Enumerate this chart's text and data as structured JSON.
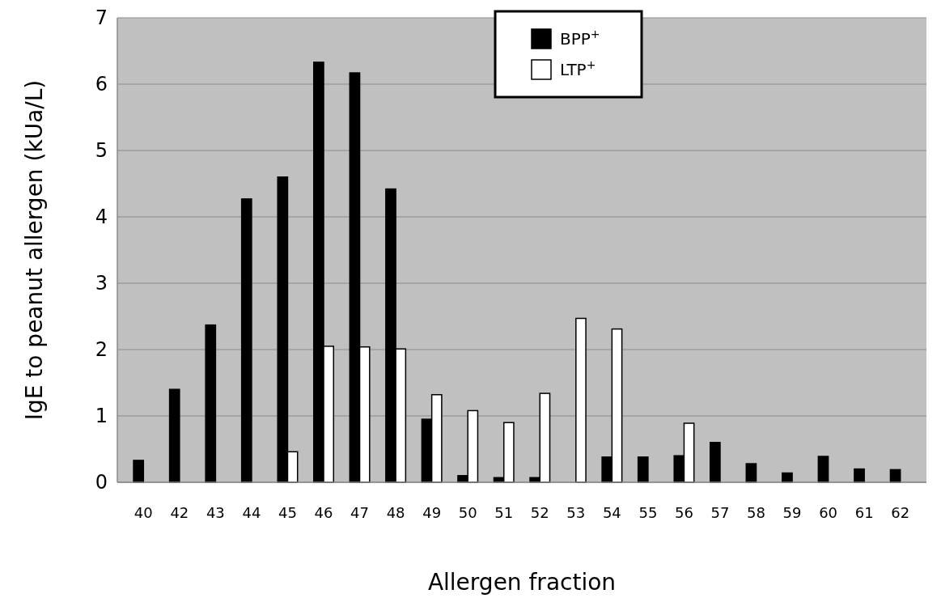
{
  "chart_data": {
    "type": "bar",
    "xlabel": "Allergen fraction",
    "ylabel": "IgE to peanut allergen (kUa/L)",
    "categories": [
      "40",
      "42",
      "43",
      "44",
      "45",
      "46",
      "47",
      "48",
      "49",
      "50",
      "51",
      "52",
      "53",
      "54",
      "55",
      "56",
      "57",
      "58",
      "59",
      "60",
      "61",
      "62"
    ],
    "series": [
      {
        "name": "BPP$^{+}$",
        "color": "#000000",
        "values": [
          0.33,
          1.4,
          2.37,
          4.27,
          4.6,
          6.33,
          6.17,
          4.42,
          0.95,
          0.1,
          0.07,
          0.07,
          null,
          0.38,
          0.38,
          0.4,
          0.6,
          0.28,
          0.14,
          0.39,
          0.2,
          0.19
        ]
      },
      {
        "name": "LTP$^{+}$",
        "color": "#ffffff",
        "values": [
          null,
          null,
          null,
          null,
          0.46,
          2.05,
          2.04,
          2.01,
          1.32,
          1.08,
          0.9,
          1.34,
          2.47,
          2.31,
          null,
          0.89,
          null,
          null,
          null,
          null,
          null,
          null
        ]
      }
    ],
    "ylim": [
      0,
      7
    ],
    "yticks": [
      0,
      1,
      2,
      3,
      4,
      5,
      6,
      7
    ],
    "grid": "y",
    "legend": "top"
  }
}
